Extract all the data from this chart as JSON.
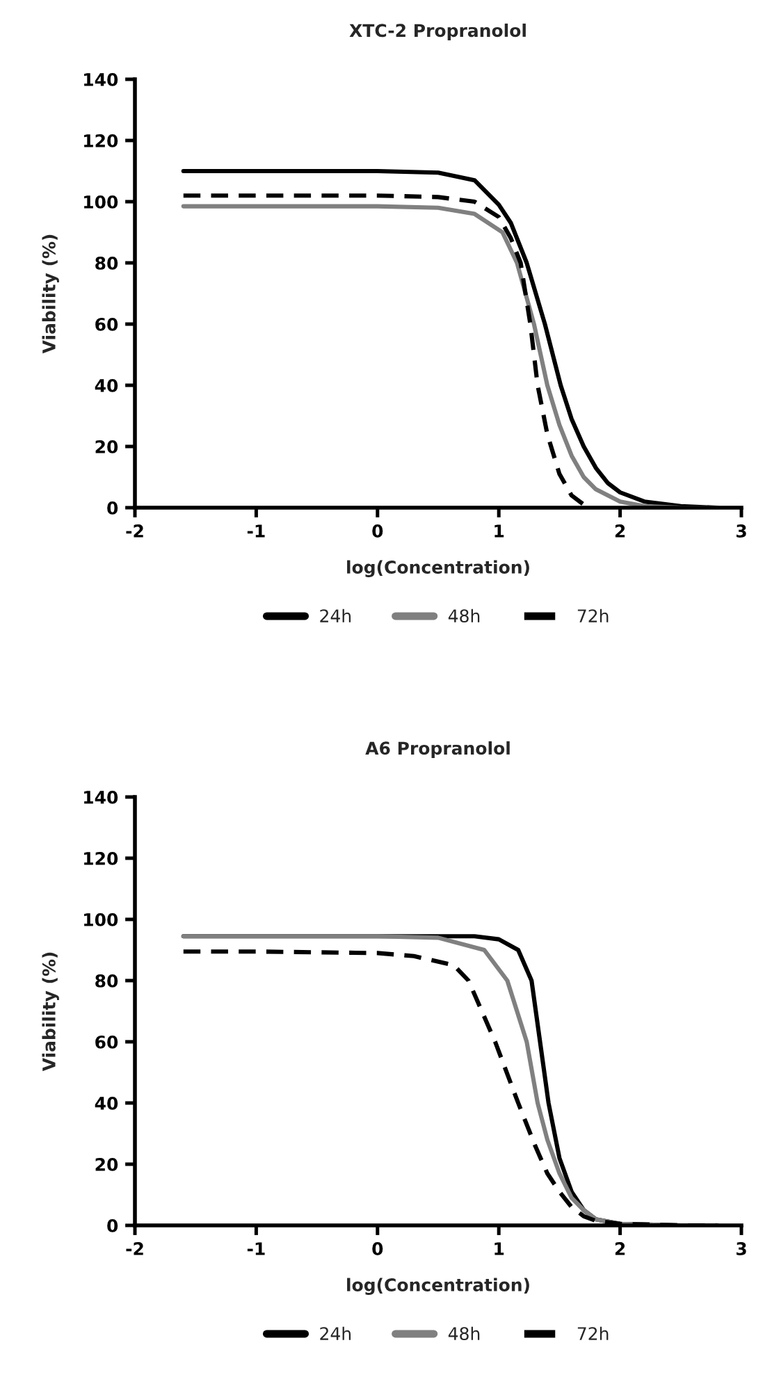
{
  "chart_data": [
    {
      "type": "line",
      "title": "XTC-2 Propranolol",
      "xlabel": "log(Concentration)",
      "ylabel": "Viability (%)",
      "xlim": [
        -2,
        3
      ],
      "xticks": [
        -2,
        -1,
        0,
        1,
        2,
        3
      ],
      "ylim": [
        0,
        140
      ],
      "yticks": [
        0,
        20,
        40,
        60,
        80,
        100,
        120,
        140
      ],
      "grid": false,
      "legend": "bottom",
      "marker": "none",
      "series": [
        {
          "name": "24h",
          "color": "#000000",
          "line_style": "solid",
          "x": [
            -1.6,
            -1,
            0,
            0.5,
            0.8,
            1.0,
            1.1,
            1.23,
            1.38,
            1.51,
            1.6,
            1.7,
            1.8,
            1.9,
            2.0,
            2.2,
            2.5,
            2.8
          ],
          "values": [
            110,
            110,
            110,
            109.5,
            107,
            99,
            93,
            80,
            60,
            40,
            29,
            20,
            13,
            8,
            5,
            2,
            0.5,
            0
          ]
        },
        {
          "name": "48h",
          "color": "#808080",
          "line_style": "solid",
          "x": [
            -1.6,
            -1,
            0,
            0.5,
            0.8,
            1.03,
            1.15,
            1.29,
            1.4,
            1.5,
            1.6,
            1.7,
            1.8,
            2.0,
            2.2,
            2.5,
            2.8
          ],
          "values": [
            98.5,
            98.5,
            98.5,
            98,
            96,
            90,
            80,
            60,
            40,
            27,
            17,
            10,
            6,
            2,
            0.5,
            0,
            0
          ]
        },
        {
          "name": "72h",
          "color": "#000000",
          "line_style": "dashed",
          "x": [
            -1.6,
            -1,
            0,
            0.5,
            0.8,
            1.0,
            1.1,
            1.18,
            1.26,
            1.32,
            1.4,
            1.5,
            1.6,
            1.7,
            1.75
          ],
          "values": [
            102,
            102,
            102,
            101.5,
            100,
            95,
            88,
            80,
            60,
            40,
            24,
            11,
            4,
            1,
            0
          ]
        }
      ]
    },
    {
      "type": "line",
      "title": "A6 Propranolol",
      "xlabel": "log(Concentration)",
      "ylabel": "Viability (%)",
      "xlim": [
        -2,
        3
      ],
      "xticks": [
        -2,
        -1,
        0,
        1,
        2,
        3
      ],
      "ylim": [
        0,
        140
      ],
      "yticks": [
        0,
        20,
        40,
        60,
        80,
        100,
        120,
        140
      ],
      "grid": false,
      "legend": "bottom",
      "marker": "none",
      "series": [
        {
          "name": "24h",
          "color": "#000000",
          "line_style": "solid",
          "x": [
            -1.6,
            0,
            0.8,
            1.0,
            1.16,
            1.27,
            1.34,
            1.41,
            1.5,
            1.6,
            1.7,
            1.8,
            2.0,
            2.5,
            2.8
          ],
          "values": [
            94.5,
            94.5,
            94.5,
            93.5,
            90,
            80,
            60,
            40,
            22,
            11,
            5,
            2,
            0.5,
            0,
            0
          ]
        },
        {
          "name": "48h",
          "color": "#808080",
          "line_style": "solid",
          "x": [
            -1.6,
            0,
            0.5,
            0.88,
            1.07,
            1.23,
            1.32,
            1.4,
            1.5,
            1.6,
            1.7,
            1.8,
            2.0,
            2.5,
            2.8
          ],
          "values": [
            94.5,
            94.5,
            94,
            90,
            80,
            60,
            40,
            28,
            17,
            9,
            5,
            2,
            0.5,
            0,
            0
          ]
        },
        {
          "name": "72h",
          "color": "#000000",
          "line_style": "dashed",
          "x": [
            -1.6,
            -1,
            0,
            0.3,
            0.63,
            0.75,
            0.97,
            1.16,
            1.3,
            1.4,
            1.5,
            1.6,
            1.7,
            1.8,
            2.0,
            2.5,
            2.8
          ],
          "values": [
            89.5,
            89.5,
            89,
            88,
            85,
            80,
            60,
            40,
            26,
            17,
            11,
            6,
            3,
            1.5,
            0.5,
            0,
            0
          ]
        }
      ]
    }
  ]
}
